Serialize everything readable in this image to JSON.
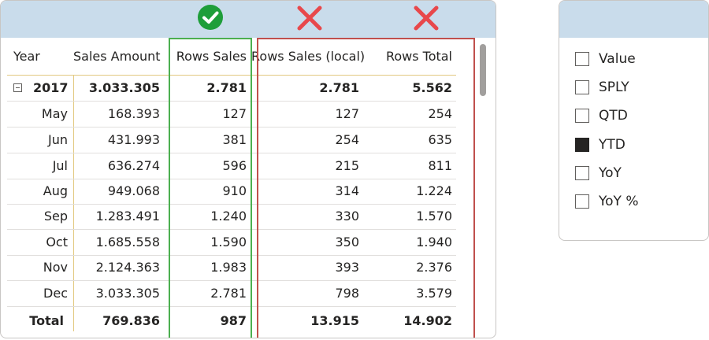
{
  "matrix": {
    "columns": [
      "Year",
      "Sales Amount",
      "Rows Sales",
      "Rows Sales (local)",
      "Rows Total"
    ],
    "year_row": {
      "label": "2017",
      "values": [
        "3.033.305",
        "2.781",
        "2.781",
        "5.562"
      ]
    },
    "months": [
      {
        "label": "May",
        "values": [
          "168.393",
          "127",
          "127",
          "254"
        ]
      },
      {
        "label": "Jun",
        "values": [
          "431.993",
          "381",
          "254",
          "635"
        ]
      },
      {
        "label": "Jul",
        "values": [
          "636.274",
          "596",
          "215",
          "811"
        ]
      },
      {
        "label": "Aug",
        "values": [
          "949.068",
          "910",
          "314",
          "1.224"
        ]
      },
      {
        "label": "Sep",
        "values": [
          "1.283.491",
          "1.240",
          "330",
          "1.570"
        ]
      },
      {
        "label": "Oct",
        "values": [
          "1.685.558",
          "1.590",
          "350",
          "1.940"
        ]
      },
      {
        "label": "Nov",
        "values": [
          "2.124.363",
          "1.983",
          "393",
          "2.376"
        ]
      },
      {
        "label": "Dec",
        "values": [
          "3.033.305",
          "2.781",
          "798",
          "3.579"
        ]
      }
    ],
    "total_row": {
      "label": "Total",
      "values": [
        "769.836",
        "987",
        "13.915",
        "14.902"
      ]
    },
    "annotations": {
      "correct_color": "#1e9e3a",
      "wrong_color": "#e8484b",
      "green_box": "#4caf50",
      "red_box": "#c0504d"
    }
  },
  "slicer": {
    "items": [
      {
        "label": "Value",
        "checked": false
      },
      {
        "label": "SPLY",
        "checked": false
      },
      {
        "label": "QTD",
        "checked": false
      },
      {
        "label": "YTD",
        "checked": true
      },
      {
        "label": "YoY",
        "checked": false
      },
      {
        "label": "YoY %",
        "checked": false
      }
    ]
  }
}
